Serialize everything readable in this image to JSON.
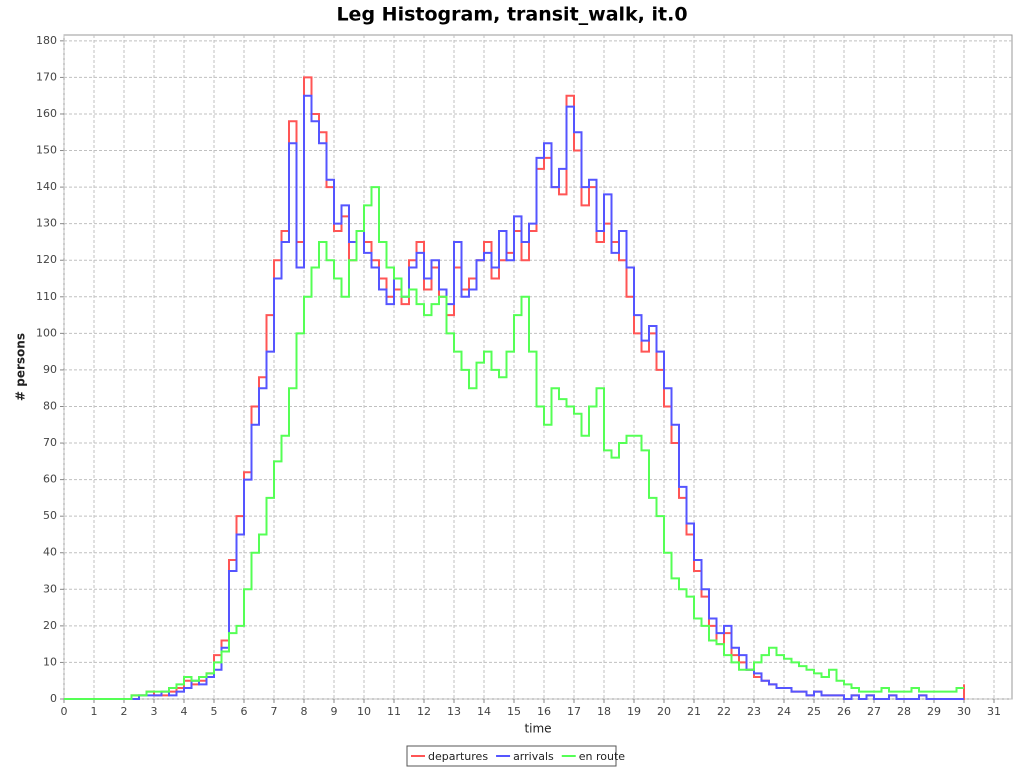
{
  "chart_data": {
    "type": "step",
    "title": "Leg Histogram, transit_walk, it.0",
    "xlabel": "time",
    "ylabel": "# persons",
    "x": [
      0,
      0.25,
      0.5,
      0.75,
      1,
      1.25,
      1.5,
      1.75,
      2,
      2.25,
      2.5,
      2.75,
      3,
      3.25,
      3.5,
      3.75,
      4,
      4.25,
      4.5,
      4.75,
      5,
      5.25,
      5.5,
      5.75,
      6,
      6.25,
      6.5,
      6.75,
      7,
      7.25,
      7.5,
      7.75,
      8,
      8.25,
      8.5,
      8.75,
      9,
      9.25,
      9.5,
      9.75,
      10,
      10.25,
      10.5,
      10.75,
      11,
      11.25,
      11.5,
      11.75,
      12,
      12.25,
      12.5,
      12.75,
      13,
      13.25,
      13.5,
      13.75,
      14,
      14.25,
      14.5,
      14.75,
      15,
      15.25,
      15.5,
      15.75,
      16,
      16.25,
      16.5,
      16.75,
      17,
      17.25,
      17.5,
      17.75,
      18,
      18.25,
      18.5,
      18.75,
      19,
      19.25,
      19.5,
      19.75,
      20,
      20.25,
      20.5,
      20.75,
      21,
      21.25,
      21.5,
      21.75,
      22,
      22.25,
      22.5,
      22.75,
      23,
      23.25,
      23.5,
      23.75,
      24,
      24.25,
      24.5,
      24.75,
      25,
      25.25,
      25.5,
      25.75,
      26,
      26.25,
      26.5,
      26.75,
      27,
      27.25,
      27.5,
      27.75,
      28,
      28.25,
      28.5,
      28.75,
      29,
      29.25,
      29.5,
      29.75,
      30
    ],
    "series": [
      {
        "name": "departures",
        "color": "#ff5555",
        "values": [
          0,
          0,
          0,
          0,
          0,
          0,
          0,
          0,
          0,
          1,
          1,
          2,
          1,
          1,
          2,
          3,
          5,
          4,
          5,
          7,
          12,
          16,
          38,
          50,
          62,
          80,
          88,
          105,
          120,
          128,
          158,
          125,
          170,
          160,
          155,
          140,
          128,
          132,
          120,
          128,
          125,
          120,
          115,
          110,
          112,
          108,
          120,
          125,
          112,
          118,
          110,
          105,
          118,
          112,
          115,
          120,
          125,
          115,
          120,
          122,
          128,
          120,
          128,
          145,
          148,
          140,
          138,
          165,
          150,
          135,
          140,
          125,
          130,
          125,
          120,
          110,
          100,
          95,
          100,
          90,
          80,
          70,
          55,
          45,
          35,
          28,
          20,
          15,
          18,
          12,
          10,
          8,
          6,
          5,
          4,
          3,
          3,
          2,
          2,
          1,
          2,
          1,
          1,
          1,
          0,
          1,
          0,
          1,
          0,
          0,
          1,
          0,
          0,
          0,
          1,
          0,
          0,
          0,
          0,
          0,
          4
        ]
      },
      {
        "name": "arrivals",
        "color": "#5555ff",
        "values": [
          0,
          0,
          0,
          0,
          0,
          0,
          0,
          0,
          0,
          0,
          1,
          1,
          1,
          2,
          1,
          2,
          3,
          5,
          4,
          6,
          8,
          14,
          35,
          45,
          60,
          75,
          85,
          95,
          115,
          125,
          152,
          118,
          165,
          158,
          152,
          142,
          130,
          135,
          125,
          128,
          122,
          118,
          112,
          108,
          115,
          110,
          118,
          122,
          115,
          120,
          112,
          108,
          125,
          110,
          112,
          120,
          122,
          118,
          128,
          120,
          132,
          125,
          130,
          148,
          152,
          140,
          145,
          162,
          155,
          140,
          142,
          128,
          138,
          122,
          128,
          118,
          105,
          98,
          102,
          95,
          85,
          75,
          58,
          48,
          38,
          30,
          22,
          18,
          20,
          14,
          12,
          8,
          7,
          5,
          4,
          3,
          3,
          2,
          2,
          1,
          2,
          1,
          1,
          1,
          0,
          1,
          0,
          1,
          0,
          0,
          1,
          0,
          0,
          0,
          1,
          0,
          0,
          0,
          0,
          0,
          0
        ]
      },
      {
        "name": "en route",
        "color": "#55ff55",
        "values": [
          0,
          0,
          0,
          0,
          0,
          0,
          0,
          0,
          0,
          1,
          1,
          2,
          2,
          2,
          3,
          4,
          6,
          5,
          6,
          7,
          10,
          13,
          18,
          20,
          30,
          40,
          45,
          55,
          65,
          72,
          85,
          100,
          110,
          118,
          125,
          120,
          115,
          110,
          120,
          128,
          135,
          140,
          125,
          118,
          115,
          110,
          112,
          108,
          105,
          108,
          110,
          100,
          95,
          90,
          85,
          92,
          95,
          90,
          88,
          95,
          105,
          110,
          95,
          80,
          75,
          85,
          82,
          80,
          78,
          72,
          80,
          85,
          68,
          66,
          70,
          72,
          72,
          68,
          55,
          50,
          40,
          33,
          30,
          28,
          22,
          20,
          16,
          15,
          12,
          10,
          8,
          8,
          10,
          12,
          14,
          12,
          11,
          10,
          9,
          8,
          7,
          6,
          8,
          5,
          4,
          3,
          2,
          2,
          2,
          3,
          2,
          2,
          2,
          3,
          2,
          2,
          2,
          2,
          2,
          3,
          3
        ]
      }
    ],
    "xlim": [
      0,
      31.6
    ],
    "ylim": [
      0,
      181.6
    ],
    "xticks": [
      0,
      1,
      2,
      3,
      4,
      5,
      6,
      7,
      8,
      9,
      10,
      11,
      12,
      13,
      14,
      15,
      16,
      17,
      18,
      19,
      20,
      21,
      22,
      23,
      24,
      25,
      26,
      27,
      28,
      29,
      30,
      31
    ],
    "yticks": [
      0,
      10,
      20,
      30,
      40,
      50,
      60,
      70,
      80,
      90,
      100,
      110,
      120,
      130,
      140,
      150,
      160,
      170,
      180
    ],
    "grid": true,
    "legend": "bottom"
  }
}
